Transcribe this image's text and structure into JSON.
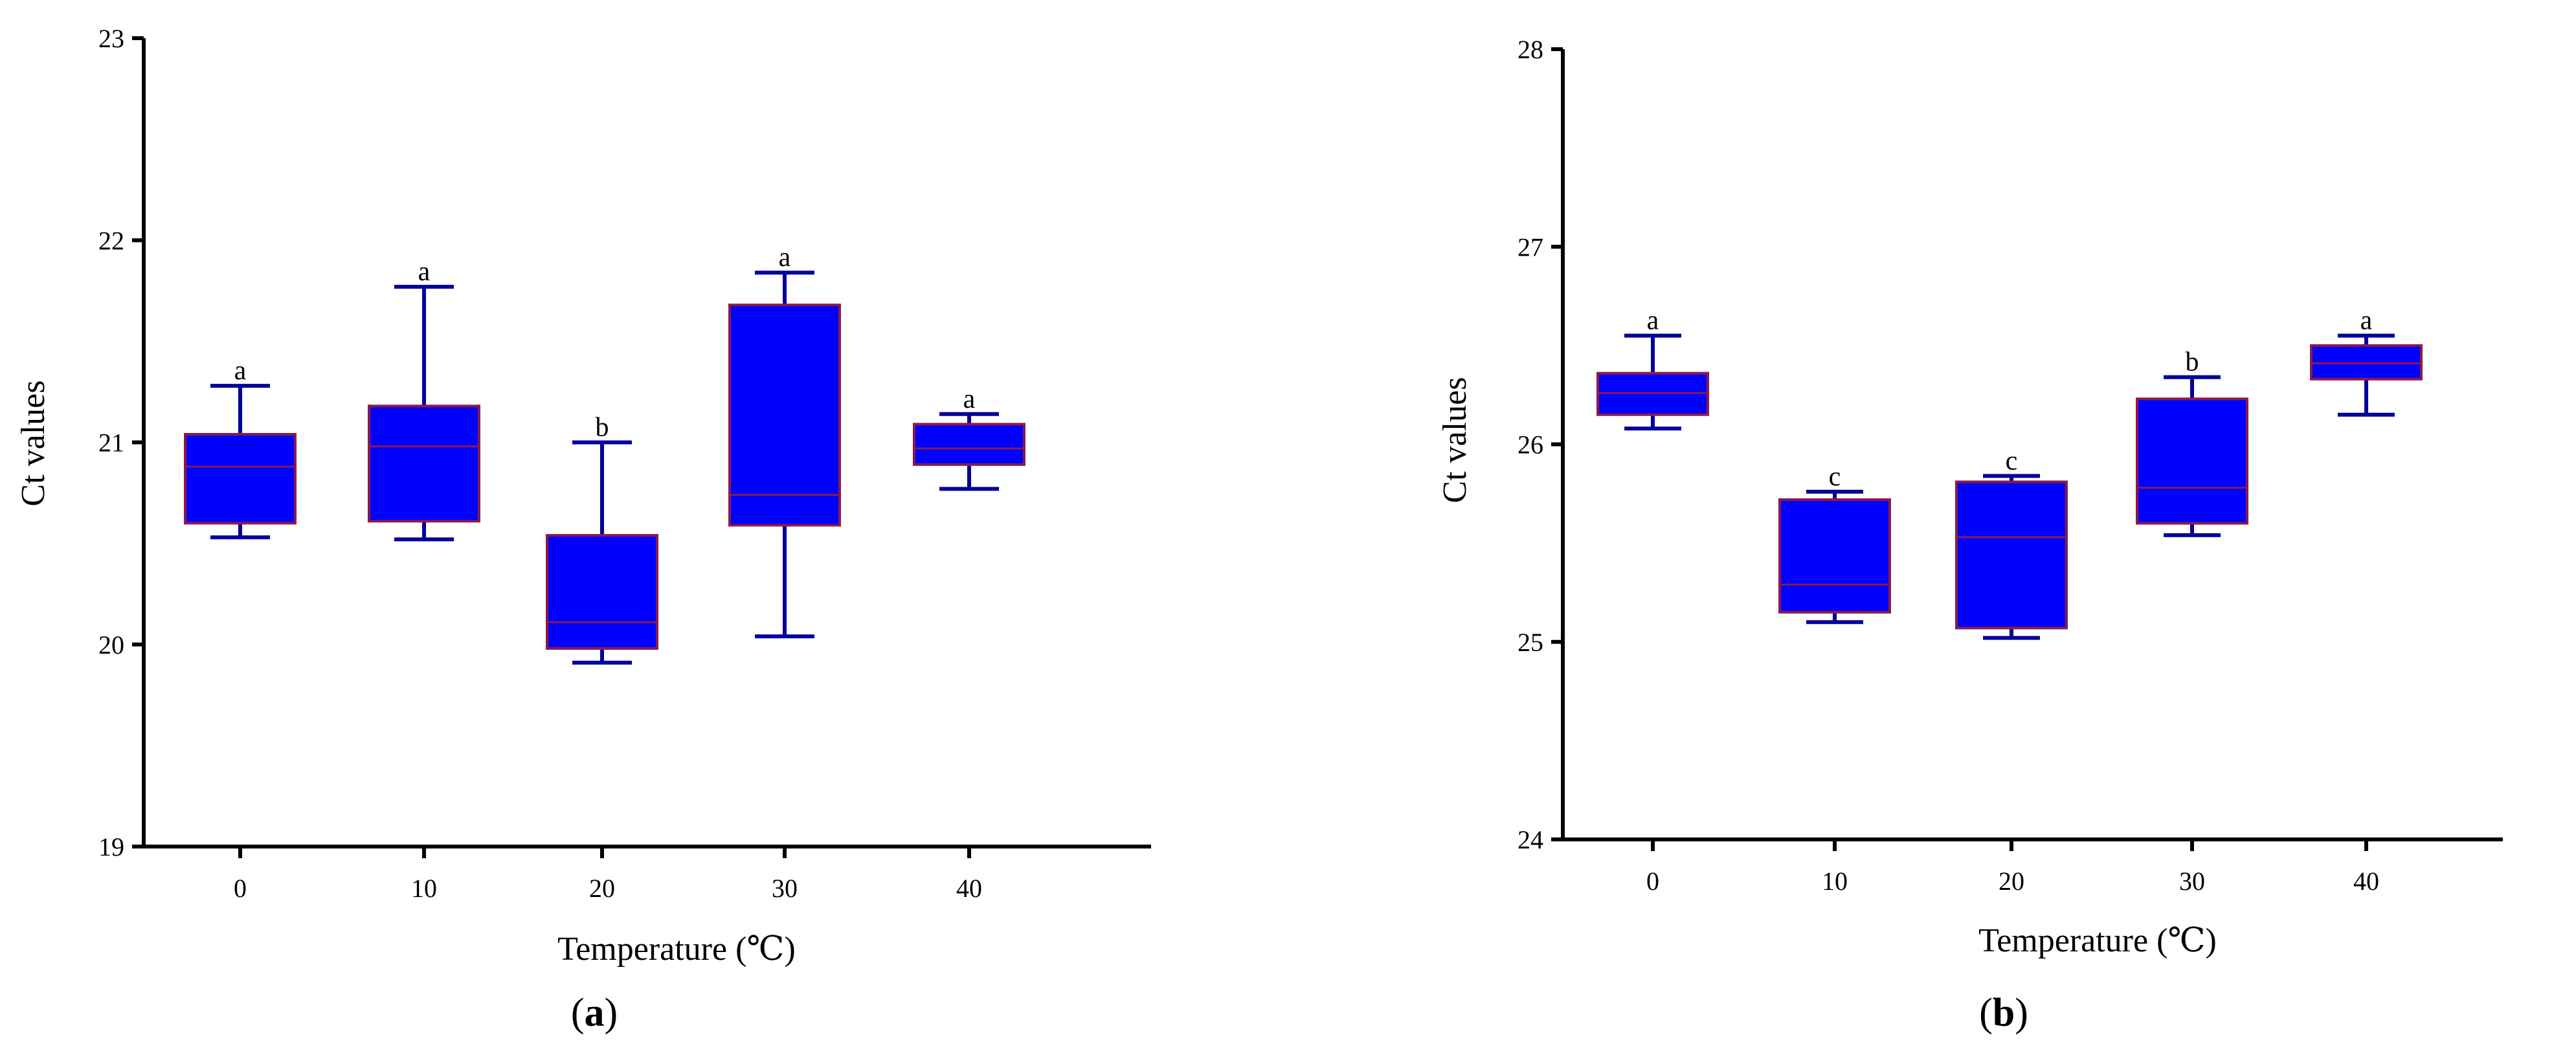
{
  "chart_data": [
    {
      "type": "box",
      "panel_label": "a",
      "panel_label_open": "(",
      "panel_label_close": ")",
      "xlabel": "Temperature (℃)",
      "ylabel": "Ct values",
      "categories": [
        "0",
        "10",
        "20",
        "30",
        "40"
      ],
      "ylim": [
        19,
        23
      ],
      "yticks": [
        19,
        20,
        21,
        22,
        23
      ],
      "grid": false,
      "box_fill": "#0000ff",
      "box_edge": "#8b1a4a",
      "whisker_color": "#00009c",
      "boxes": [
        {
          "category": "0",
          "min": 20.53,
          "q1": 20.6,
          "median": 20.88,
          "q3": 21.04,
          "max": 21.28,
          "letter": "a"
        },
        {
          "category": "10",
          "min": 20.52,
          "q1": 20.61,
          "median": 20.98,
          "q3": 21.18,
          "max": 21.77,
          "letter": "a"
        },
        {
          "category": "20",
          "min": 19.91,
          "q1": 19.98,
          "median": 20.11,
          "q3": 20.54,
          "max": 21.0,
          "letter": "b"
        },
        {
          "category": "30",
          "min": 20.04,
          "q1": 20.59,
          "median": 20.74,
          "q3": 21.68,
          "max": 21.84,
          "letter": "a"
        },
        {
          "category": "40",
          "min": 20.77,
          "q1": 20.89,
          "median": 20.97,
          "q3": 21.09,
          "max": 21.14,
          "letter": "a"
        }
      ]
    },
    {
      "type": "box",
      "panel_label": "b",
      "panel_label_open": "(",
      "panel_label_close": ")",
      "xlabel": "Temperature (℃)",
      "ylabel": "Ct values",
      "categories": [
        "0",
        "10",
        "20",
        "30",
        "40"
      ],
      "ylim": [
        24,
        28
      ],
      "yticks": [
        24,
        25,
        26,
        27,
        28
      ],
      "grid": false,
      "box_fill": "#0000ff",
      "box_edge": "#8b1a4a",
      "whisker_color": "#00009c",
      "boxes": [
        {
          "category": "0",
          "min": 26.08,
          "q1": 26.15,
          "median": 26.26,
          "q3": 26.36,
          "max": 26.55,
          "letter": "a"
        },
        {
          "category": "10",
          "min": 25.1,
          "q1": 25.15,
          "median": 25.29,
          "q3": 25.72,
          "max": 25.76,
          "letter": "c"
        },
        {
          "category": "20",
          "min": 25.02,
          "q1": 25.07,
          "median": 25.53,
          "q3": 25.81,
          "max": 25.84,
          "letter": "c"
        },
        {
          "category": "30",
          "min": 25.54,
          "q1": 25.6,
          "median": 25.78,
          "q3": 26.23,
          "max": 26.34,
          "letter": "b"
        },
        {
          "category": "40",
          "min": 26.15,
          "q1": 26.33,
          "median": 26.41,
          "q3": 26.5,
          "max": 26.55,
          "letter": "a"
        }
      ]
    }
  ]
}
